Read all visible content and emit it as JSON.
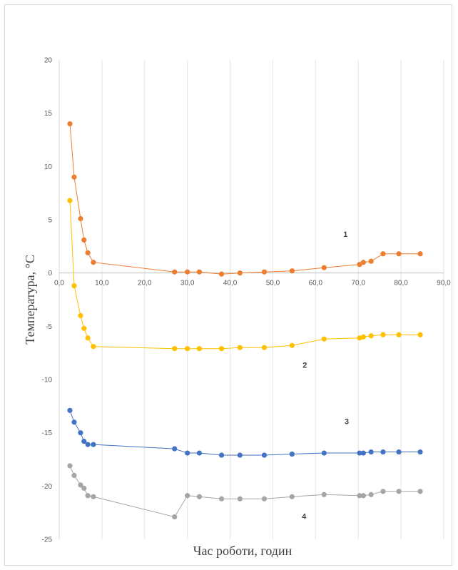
{
  "chart_data": {
    "type": "line",
    "title": "",
    "xlabel": "Час роботи, годин",
    "ylabel": "Температура, °С",
    "xlim": [
      0,
      90
    ],
    "ylim": [
      -25,
      20
    ],
    "x_ticks": [
      "0,0",
      "10,0",
      "20,0",
      "30,0",
      "40,0",
      "50,0",
      "60,0",
      "70,0",
      "80,0",
      "90,0"
    ],
    "y_ticks": [
      "20",
      "15",
      "10",
      "5",
      "0",
      "-5",
      "-10",
      "-15",
      "-20",
      "-25"
    ],
    "grid": "vertical",
    "legend": "none",
    "series": [
      {
        "color": "#ed7d31",
        "label": "1",
        "points": [
          [
            2.5,
            14
          ],
          [
            3.5,
            9
          ],
          [
            5,
            5.1
          ],
          [
            5.8,
            3.1
          ],
          [
            6.7,
            1.9
          ],
          [
            8,
            1
          ],
          [
            27,
            0.1
          ],
          [
            30,
            0.1
          ],
          [
            32.8,
            0.1
          ],
          [
            38,
            -0.1
          ],
          [
            42.3,
            0
          ],
          [
            48,
            0.1
          ],
          [
            54.5,
            0.2
          ],
          [
            62,
            0.5
          ],
          [
            70.3,
            0.8
          ],
          [
            71.2,
            1
          ],
          [
            73,
            1.1
          ],
          [
            75.8,
            1.8
          ],
          [
            79.5,
            1.8
          ],
          [
            84.5,
            1.8
          ]
        ]
      },
      {
        "color": "#ffc000",
        "label": "2",
        "points": [
          [
            2.5,
            6.8
          ],
          [
            3.5,
            -1.2
          ],
          [
            5,
            -4
          ],
          [
            5.8,
            -5.2
          ],
          [
            6.7,
            -6.1
          ],
          [
            8,
            -6.9
          ],
          [
            27,
            -7.1
          ],
          [
            30,
            -7.1
          ],
          [
            32.8,
            -7.1
          ],
          [
            38,
            -7.1
          ],
          [
            42.3,
            -7
          ],
          [
            48,
            -7
          ],
          [
            54.5,
            -6.8
          ],
          [
            62,
            -6.2
          ],
          [
            70.3,
            -6.1
          ],
          [
            71.2,
            -6
          ],
          [
            73,
            -5.9
          ],
          [
            75.8,
            -5.8
          ],
          [
            79.5,
            -5.8
          ],
          [
            84.5,
            -5.8
          ]
        ]
      },
      {
        "color": "#4472c4",
        "label": "3",
        "points": [
          [
            2.5,
            -12.9
          ],
          [
            3.5,
            -14
          ],
          [
            5,
            -15
          ],
          [
            5.8,
            -15.8
          ],
          [
            6.7,
            -16.1
          ],
          [
            8,
            -16.1
          ],
          [
            27,
            -16.5
          ],
          [
            30,
            -16.9
          ],
          [
            32.8,
            -16.9
          ],
          [
            38,
            -17.1
          ],
          [
            42.3,
            -17.1
          ],
          [
            48,
            -17.1
          ],
          [
            54.5,
            -17
          ],
          [
            62,
            -16.9
          ],
          [
            70.3,
            -16.9
          ],
          [
            71.2,
            -16.9
          ],
          [
            73,
            -16.8
          ],
          [
            75.8,
            -16.8
          ],
          [
            79.5,
            -16.8
          ],
          [
            84.5,
            -16.8
          ]
        ]
      },
      {
        "color": "#a5a5a5",
        "label": "4",
        "points": [
          [
            2.5,
            -18.1
          ],
          [
            3.5,
            -19
          ],
          [
            5,
            -19.9
          ],
          [
            5.8,
            -20.2
          ],
          [
            6.7,
            -20.9
          ],
          [
            8,
            -21
          ],
          [
            27,
            -22.9
          ],
          [
            30,
            -20.9
          ],
          [
            32.8,
            -21
          ],
          [
            38,
            -21.2
          ],
          [
            42.3,
            -21.2
          ],
          [
            48,
            -21.2
          ],
          [
            54.5,
            -21
          ],
          [
            62,
            -20.8
          ],
          [
            70.3,
            -20.9
          ],
          [
            71.2,
            -20.9
          ],
          [
            73,
            -20.8
          ],
          [
            75.8,
            -20.5
          ],
          [
            79.5,
            -20.5
          ],
          [
            84.5,
            -20.5
          ]
        ]
      }
    ]
  }
}
